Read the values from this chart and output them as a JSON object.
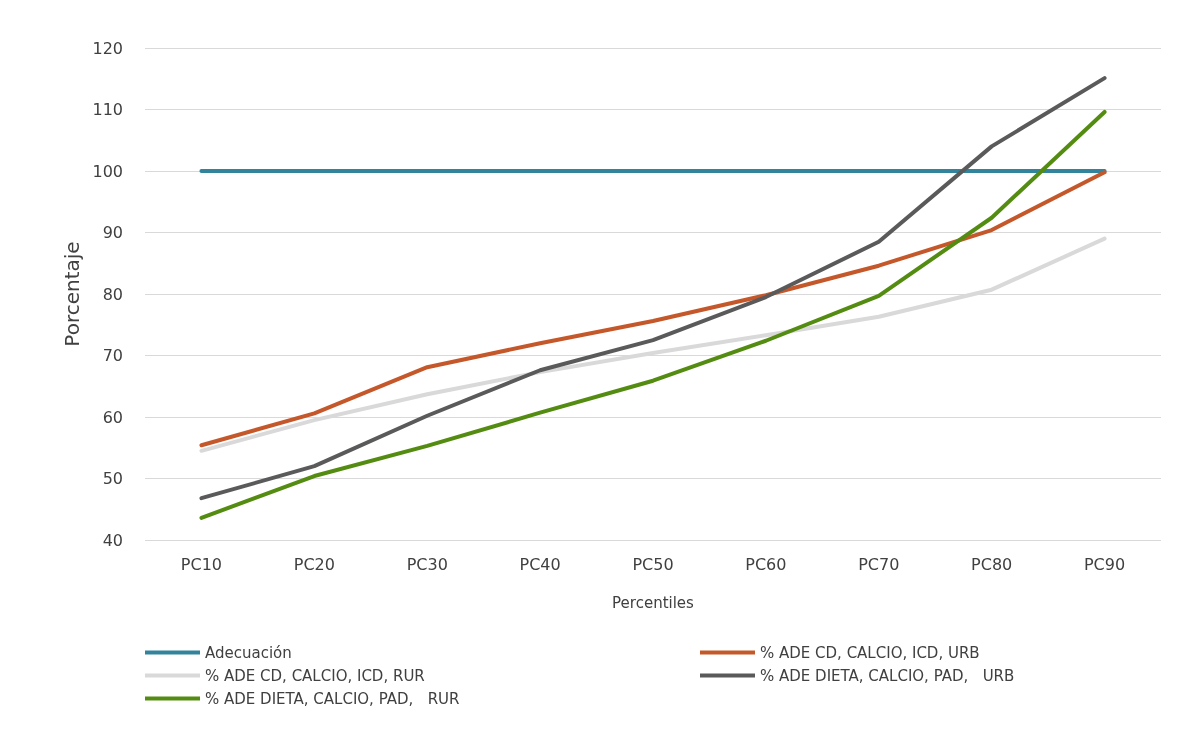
{
  "chart_data": {
    "type": "line",
    "xlabel": "Percentiles",
    "ylabel": "Porcentaje",
    "categories": [
      "PC10",
      "PC20",
      "PC30",
      "PC40",
      "PC50",
      "PC60",
      "PC70",
      "PC80",
      "PC90"
    ],
    "series": [
      {
        "name": "Adecuación",
        "color": "#31849b",
        "values": [
          100,
          100,
          100,
          100,
          100,
          100,
          100,
          100,
          100
        ]
      },
      {
        "name": "% ADE CD, CALCIO, ICD, URB",
        "color": "#c5582a",
        "values": [
          55.4,
          60.6,
          68.1,
          72,
          75.6,
          79.8,
          84.6,
          90.4,
          99.8
        ]
      },
      {
        "name": "% ADE CD, CALCIO, ICD, RUR",
        "color": "#d9d9d9",
        "values": [
          54.5,
          59.5,
          63.7,
          67.3,
          70.4,
          73.3,
          76.3,
          80.7,
          89
        ]
      },
      {
        "name": "% ADE DIETA, CALCIO, PAD,   URB",
        "color": "#5a5a5a",
        "values": [
          46.8,
          52,
          60.2,
          67.6,
          72.5,
          79.5,
          88.5,
          104,
          115.1
        ]
      },
      {
        "name": "% ADE DIETA, CALCIO, PAD,   RUR",
        "color": "#548c12",
        "values": [
          43.6,
          50.4,
          55.3,
          60.7,
          65.9,
          72.4,
          79.7,
          92.4,
          109.6
        ]
      }
    ],
    "ylim": [
      40,
      120
    ],
    "yticks": [
      40,
      50,
      60,
      70,
      80,
      90,
      100,
      110,
      120
    ],
    "grid": "y",
    "legend": "bottom",
    "marker": "none",
    "line_style": "solid"
  }
}
